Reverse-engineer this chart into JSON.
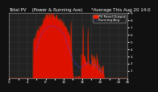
{
  "title": "Total PV    (Power & Running Ave)      *Average This Aug 20 14:0",
  "background_color": "#111111",
  "plot_bg": "#222222",
  "grid_color": "#555555",
  "fill_color": "#dd1100",
  "fill_alpha": 1.0,
  "avg_line_color": "#4444ff",
  "legend_pv_color": "#ff2200",
  "legend_avg_color": "#4444ff",
  "ylim": [
    0,
    9
  ],
  "ytick_vals": [
    1,
    2,
    3,
    4,
    5,
    6,
    7,
    8,
    9
  ],
  "num_points": 288,
  "title_fontsize": 4.0,
  "tick_fontsize": 3.0,
  "legend_fontsize": 3.0
}
